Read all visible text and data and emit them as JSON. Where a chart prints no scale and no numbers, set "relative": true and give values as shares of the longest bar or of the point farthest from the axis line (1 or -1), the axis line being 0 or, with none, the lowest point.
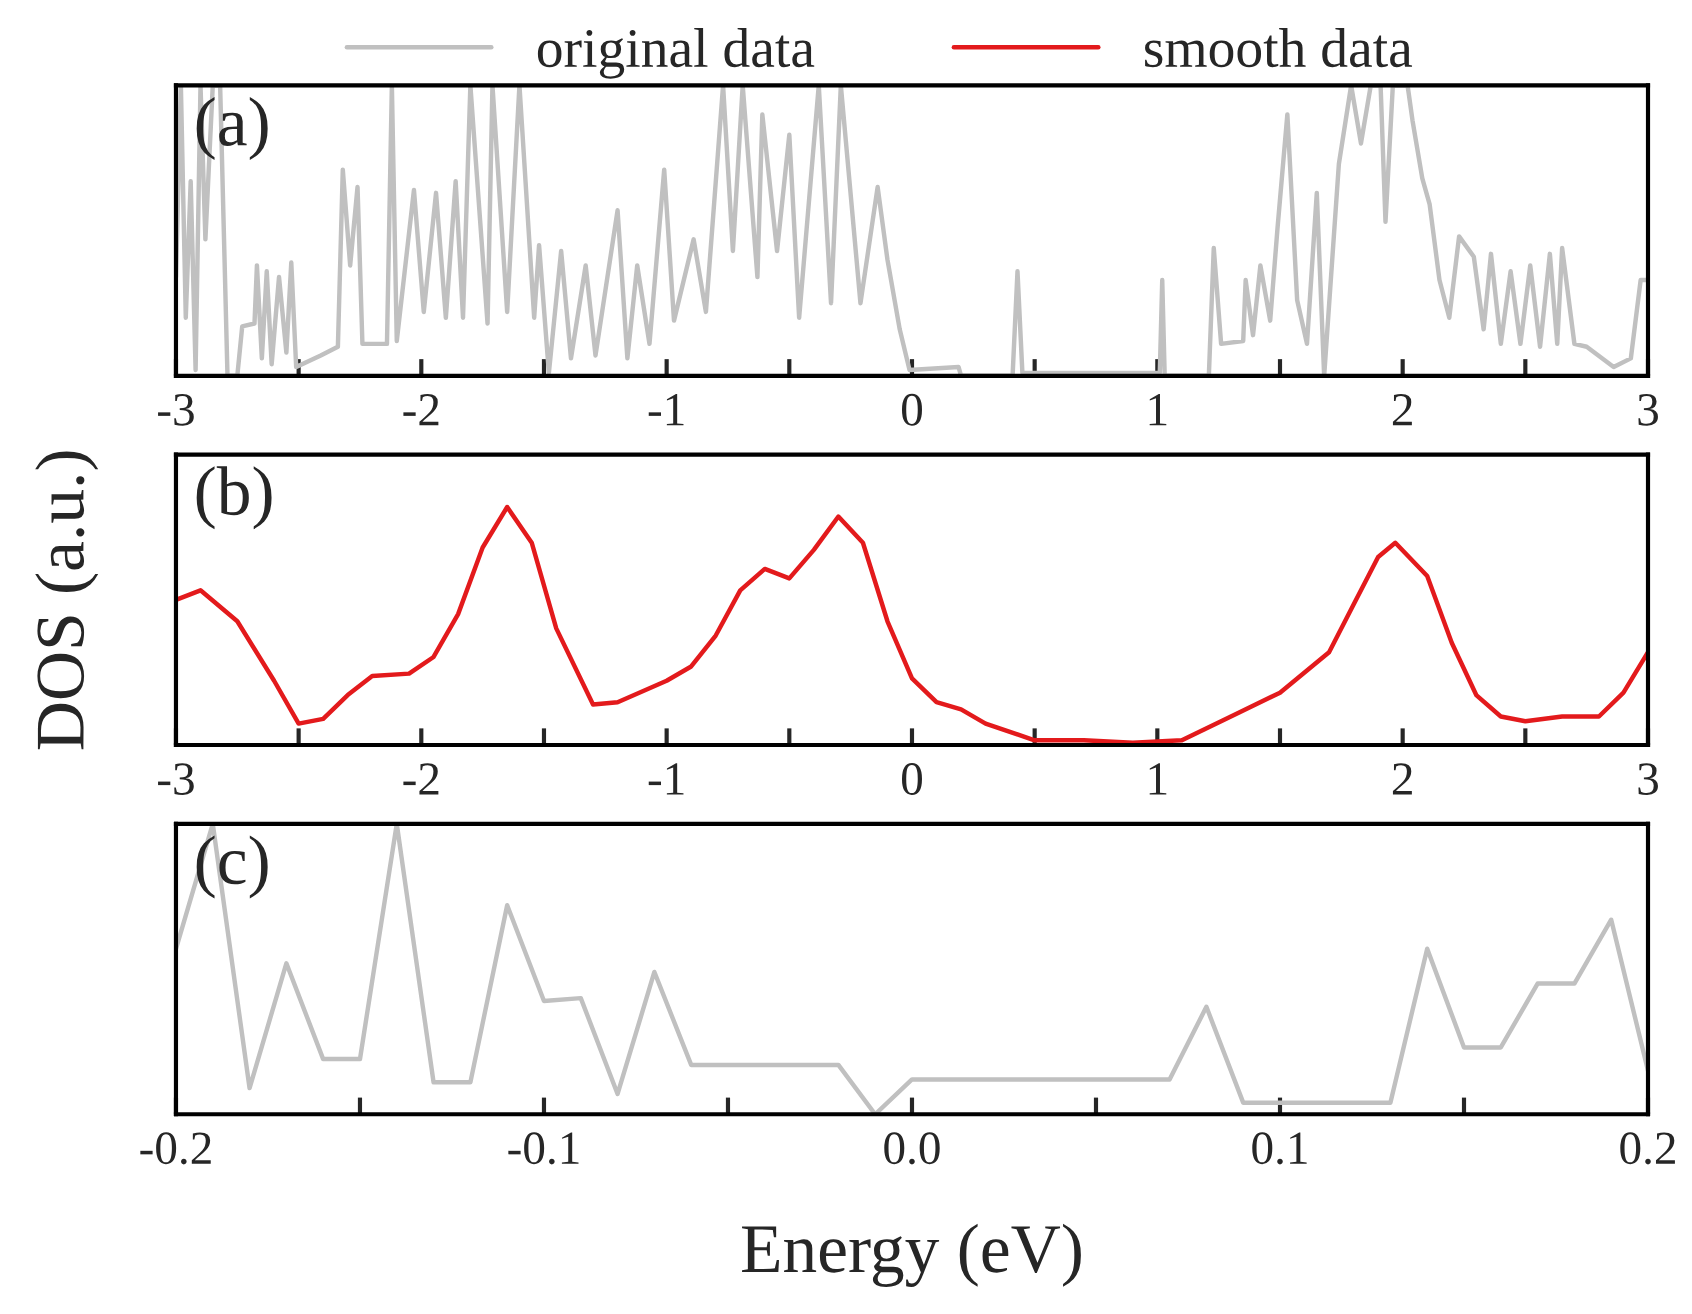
{
  "chart_data": [
    {
      "type": "line",
      "relative": true,
      "legend": "top",
      "annotations": [
        "(a)"
      ],
      "xlim": [
        -3,
        3
      ],
      "xticks": [
        -3,
        {
          "value": -2.5,
          "label": null
        },
        -2,
        {
          "value": -1.5,
          "label": null
        },
        -1,
        {
          "value": -0.5,
          "label": null
        },
        0,
        {
          "value": 0.5,
          "label": null
        },
        1,
        {
          "value": 1.5,
          "label": null
        },
        2,
        {
          "value": 2.5,
          "label": null
        },
        3
      ],
      "series": [
        {
          "name": "original data",
          "color": "#c0c0c0",
          "x": [
            -3.0,
            -2.98,
            -2.96,
            -2.94,
            -2.92,
            -2.9,
            -2.88,
            -2.85,
            -2.82,
            -2.79,
            -2.75,
            -2.73,
            -2.68,
            -2.67,
            -2.65,
            -2.63,
            -2.61,
            -2.58,
            -2.55,
            -2.53,
            -2.51,
            -2.41,
            -2.34,
            -2.32,
            -2.29,
            -2.26,
            -2.24,
            -2.14,
            -2.12,
            -2.1,
            -2.03,
            -1.99,
            -1.94,
            -1.9,
            -1.86,
            -1.83,
            -1.8,
            -1.73,
            -1.71,
            -1.65,
            -1.6,
            -1.54,
            -1.52,
            -1.48,
            -1.43,
            -1.39,
            -1.33,
            -1.29,
            -1.2,
            -1.16,
            -1.12,
            -1.07,
            -1.01,
            -0.97,
            -0.89,
            -0.84,
            -0.77,
            -0.73,
            -0.69,
            -0.63,
            -0.61,
            -0.55,
            -0.5,
            -0.46,
            -0.38,
            -0.33,
            -0.29,
            -0.21,
            -0.14,
            -0.1,
            -0.05,
            -0.01,
            0.19,
            0.2,
            0.41,
            0.43,
            0.45,
            1.01,
            1.02,
            1.03,
            1.21,
            1.23,
            1.26,
            1.35,
            1.36,
            1.39,
            1.42,
            1.46,
            1.49,
            1.53,
            1.57,
            1.61,
            1.65,
            1.68,
            1.74,
            1.79,
            1.83,
            1.87,
            1.91,
            1.93,
            1.96,
            2.02,
            2.04,
            2.08,
            2.11,
            2.15,
            2.19,
            2.23,
            2.29,
            2.33,
            2.36,
            2.4,
            2.44,
            2.48,
            2.52,
            2.56,
            2.6,
            2.63,
            2.65,
            2.7,
            2.75,
            2.86,
            2.93,
            2.97,
            3.0
          ],
          "values": [
            0.34,
            1,
            0.2,
            0.67,
            0.02,
            1,
            0.47,
            1,
            1,
            0,
            0,
            0.17,
            0.18,
            0.38,
            0.06,
            0.36,
            0.04,
            0.34,
            0.08,
            0.39,
            0.03,
            0.07,
            0.1,
            0.71,
            0.38,
            0.65,
            0.11,
            0.11,
            1,
            0.12,
            0.64,
            0.22,
            0.63,
            0.2,
            0.67,
            0.2,
            1,
            0.18,
            1,
            0.22,
            1,
            0.2,
            0.45,
            0.01,
            0.43,
            0.06,
            0.38,
            0.07,
            0.57,
            0.06,
            0.38,
            0.11,
            0.71,
            0.19,
            0.47,
            0.22,
            1,
            0.43,
            1,
            0.34,
            0.9,
            0.43,
            0.83,
            0.2,
            1,
            0.25,
            1,
            0.25,
            0.65,
            0.4,
            0.16,
            0.02,
            0.03,
            0,
            0,
            0.36,
            0.01,
            0.01,
            0.33,
            0,
            0,
            0.44,
            0.11,
            0.12,
            0.33,
            0.14,
            0.38,
            0.19,
            0.51,
            0.9,
            0.26,
            0.11,
            0.63,
            0,
            0.73,
            1,
            0.8,
            1,
            1,
            0.53,
            1,
            1,
            0.88,
            0.68,
            0.59,
            0.33,
            0.2,
            0.48,
            0.41,
            0.16,
            0.42,
            0.11,
            0.36,
            0.11,
            0.38,
            0.1,
            0.42,
            0.11,
            0.44,
            0.11,
            0.1,
            0.03,
            0.06,
            0.33,
            0.33
          ]
        }
      ]
    },
    {
      "type": "line",
      "relative": true,
      "legend": "top",
      "annotations": [
        "(b)"
      ],
      "ylabel": "DOS (a.u.)",
      "xlim": [
        -3,
        3
      ],
      "xticks": [
        -3,
        {
          "value": -2.5,
          "label": null
        },
        -2,
        {
          "value": -1.5,
          "label": null
        },
        -1,
        {
          "value": -0.5,
          "label": null
        },
        0,
        {
          "value": 0.5,
          "label": null
        },
        1,
        {
          "value": 1.5,
          "label": null
        },
        2,
        {
          "value": 2.5,
          "label": null
        },
        3
      ],
      "series": [
        {
          "name": "smooth data",
          "color": "#e31a1c",
          "x": [
            -3.0,
            -2.9,
            -2.75,
            -2.6,
            -2.5,
            -2.4,
            -2.3,
            -2.2,
            -2.05,
            -1.95,
            -1.85,
            -1.75,
            -1.65,
            -1.55,
            -1.45,
            -1.3,
            -1.2,
            -1.0,
            -0.9,
            -0.8,
            -0.7,
            -0.6,
            -0.5,
            -0.4,
            -0.3,
            -0.2,
            -0.1,
            0.0,
            0.1,
            0.2,
            0.3,
            0.5,
            0.7,
            0.9,
            1.1,
            1.3,
            1.5,
            1.7,
            1.8,
            1.9,
            1.97,
            2.1,
            2.2,
            2.3,
            2.4,
            2.5,
            2.65,
            2.8,
            2.9,
            3.0
          ],
          "values": [
            0.61,
            0.65,
            0.52,
            0.27,
            0.09,
            0.11,
            0.21,
            0.29,
            0.3,
            0.37,
            0.55,
            0.83,
            1.0,
            0.85,
            0.49,
            0.17,
            0.18,
            0.27,
            0.33,
            0.46,
            0.65,
            0.74,
            0.7,
            0.82,
            0.96,
            0.85,
            0.52,
            0.28,
            0.18,
            0.15,
            0.09,
            0.02,
            0.02,
            0.01,
            0.02,
            0.12,
            0.22,
            0.39,
            0.59,
            0.79,
            0.85,
            0.71,
            0.43,
            0.21,
            0.12,
            0.1,
            0.12,
            0.12,
            0.22,
            0.39
          ]
        }
      ]
    },
    {
      "type": "line",
      "relative": true,
      "annotations": [
        "(c)"
      ],
      "xlabel": "Energy (eV)",
      "xlim": [
        -0.2,
        0.2
      ],
      "xticks": [
        -0.2,
        {
          "value": -0.15,
          "label": null
        },
        -0.1,
        {
          "value": -0.05,
          "label": null
        },
        {
          "value": 0.0,
          "label": "0.0"
        },
        {
          "value": 0.05,
          "label": null
        },
        0.1,
        {
          "value": 0.15,
          "label": null
        },
        0.2
      ],
      "series": [
        {
          "color": "#c0c0c0",
          "x": [
            -0.2,
            -0.19,
            -0.18,
            -0.17,
            -0.16,
            -0.15,
            -0.14,
            -0.13,
            -0.12,
            -0.11,
            -0.1,
            -0.09,
            -0.08,
            -0.07,
            -0.06,
            -0.05,
            -0.04,
            -0.03,
            -0.02,
            -0.01,
            0.0,
            0.01,
            0.02,
            0.03,
            0.04,
            0.05,
            0.06,
            0.07,
            0.08,
            0.09,
            0.1,
            0.11,
            0.12,
            0.13,
            0.14,
            0.15,
            0.16,
            0.17,
            0.18,
            0.19,
            0.2
          ],
          "values": [
            0.57,
            1,
            0.09,
            0.52,
            0.19,
            0.19,
            1,
            0.11,
            0.11,
            0.72,
            0.39,
            0.4,
            0.07,
            0.49,
            0.17,
            0.17,
            0.17,
            0.17,
            0.17,
            0,
            0.12,
            0.12,
            0.12,
            0.12,
            0.12,
            0.12,
            0.12,
            0.12,
            0.37,
            0.04,
            0.04,
            0.04,
            0.04,
            0.04,
            0.57,
            0.23,
            0.23,
            0.45,
            0.45,
            0.67,
            0.15
          ]
        }
      ]
    }
  ]
}
